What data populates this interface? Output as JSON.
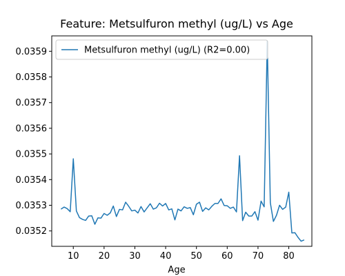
{
  "chart_data": {
    "type": "line",
    "title": "Feature: Metsulfuron methyl (ug/L) vs Age",
    "xlabel": "Age",
    "ylabel": "",
    "xlim": [
      3,
      87.5
    ],
    "ylim": [
      0.03514,
      0.03596
    ],
    "xticks": [
      10,
      20,
      30,
      40,
      50,
      60,
      70,
      80
    ],
    "yticks": [
      0.0352,
      0.0353,
      0.0354,
      0.0355,
      0.0356,
      0.0357,
      0.0358,
      0.0359
    ],
    "ytick_labels": [
      "0.0352",
      "0.0353",
      "0.0354",
      "0.0355",
      "0.0356",
      "0.0357",
      "0.0358",
      "0.0359"
    ],
    "legend_position": "top-left",
    "grid": false,
    "series": [
      {
        "name": "Metsulfuron methyl (ug/L) (R2=0.00)",
        "color": "#1f77b4",
        "x": [
          6,
          7,
          8,
          9,
          10,
          11,
          12,
          13,
          14,
          15,
          16,
          17,
          18,
          19,
          20,
          21,
          22,
          23,
          24,
          25,
          26,
          27,
          28,
          29,
          30,
          31,
          32,
          33,
          34,
          35,
          36,
          37,
          38,
          39,
          40,
          41,
          42,
          43,
          44,
          45,
          46,
          47,
          48,
          49,
          50,
          51,
          52,
          53,
          54,
          55,
          56,
          57,
          58,
          59,
          60,
          61,
          62,
          63,
          64,
          65,
          66,
          67,
          68,
          69,
          70,
          71,
          72,
          73,
          74,
          75,
          76,
          77,
          78,
          79,
          80,
          81,
          82,
          83,
          84,
          85
        ],
        "y": [
          0.035285,
          0.035293,
          0.035287,
          0.035275,
          0.035481,
          0.035278,
          0.035252,
          0.035245,
          0.035241,
          0.035258,
          0.035259,
          0.035226,
          0.035251,
          0.03525,
          0.035268,
          0.035261,
          0.03527,
          0.035297,
          0.035256,
          0.035284,
          0.035282,
          0.035312,
          0.035296,
          0.035278,
          0.035281,
          0.03527,
          0.035295,
          0.035274,
          0.03529,
          0.035306,
          0.035285,
          0.03529,
          0.035308,
          0.035297,
          0.035307,
          0.035282,
          0.035286,
          0.035243,
          0.035285,
          0.035278,
          0.035294,
          0.035288,
          0.035291,
          0.035263,
          0.035304,
          0.035312,
          0.035276,
          0.03529,
          0.035282,
          0.035296,
          0.035307,
          0.035307,
          0.035325,
          0.035299,
          0.035298,
          0.035288,
          0.035293,
          0.035274,
          0.035493,
          0.03524,
          0.035273,
          0.035258,
          0.035258,
          0.035275,
          0.035242,
          0.035316,
          0.035294,
          0.03594,
          0.03531,
          0.035237,
          0.035261,
          0.0353,
          0.035284,
          0.035293,
          0.035351,
          0.035192,
          0.035193,
          0.035175,
          0.03516,
          0.035165
        ]
      }
    ]
  }
}
